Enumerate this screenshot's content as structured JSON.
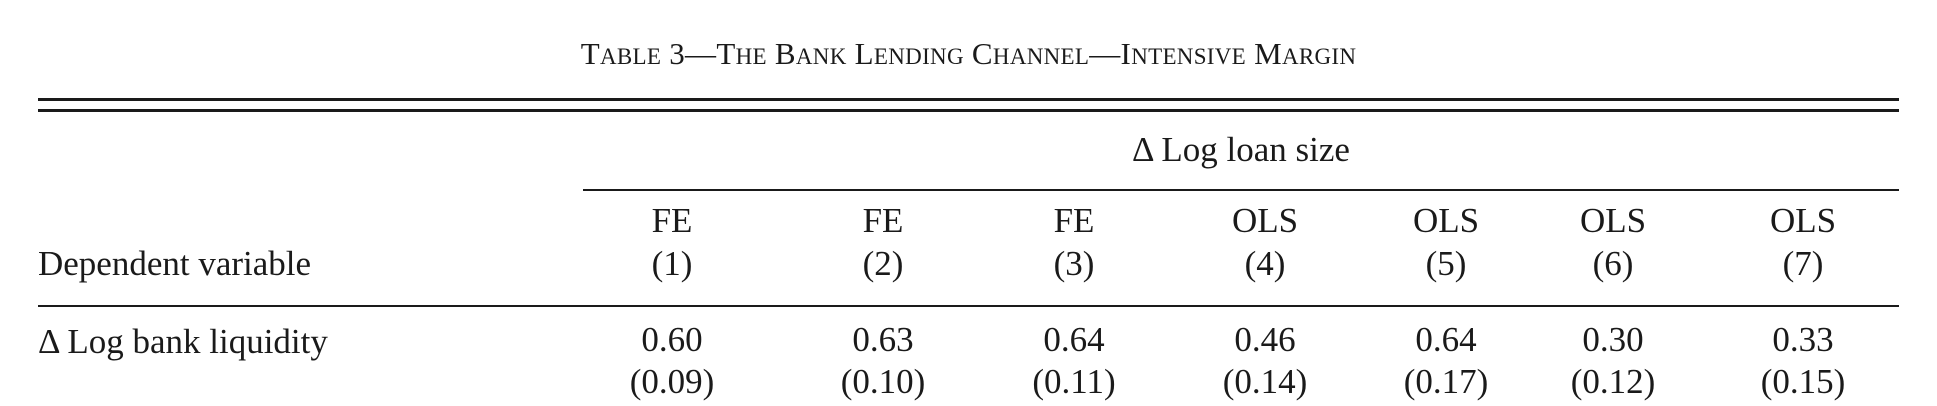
{
  "table": {
    "title_prefix": "T",
    "title_sc1": "ABLE",
    "title_mid1": " 3—T",
    "title_sc2": "HE",
    "title_mid2": " B",
    "title_sc3": "ANK",
    "title_mid3": " L",
    "title_sc4": "ENDING",
    "title_mid4": " C",
    "title_sc5": "HANNEL",
    "title_mid5": "—I",
    "title_sc6": "NTENSIVE",
    "title_mid6": " M",
    "title_sc7": "ARGIN",
    "spanner": "Δ Log loan size",
    "dependent_variable_label": "Dependent variable",
    "columns": [
      {
        "method": "FE",
        "number": "(1)"
      },
      {
        "method": "FE",
        "number": "(2)"
      },
      {
        "method": "FE",
        "number": "(3)"
      },
      {
        "method": "OLS",
        "number": "(4)"
      },
      {
        "method": "OLS",
        "number": "(5)"
      },
      {
        "method": "OLS",
        "number": "(6)"
      },
      {
        "method": "OLS",
        "number": "(7)"
      }
    ],
    "rows": [
      {
        "label": "Δ Log bank liquidity",
        "coefficients": [
          "0.60",
          "0.63",
          "0.64",
          "0.46",
          "0.64",
          "0.30",
          "0.33"
        ],
        "std_errors": [
          "(0.09)",
          "(0.10)",
          "(0.11)",
          "(0.14)",
          "(0.17)",
          "(0.12)",
          "(0.15)"
        ]
      }
    ]
  }
}
